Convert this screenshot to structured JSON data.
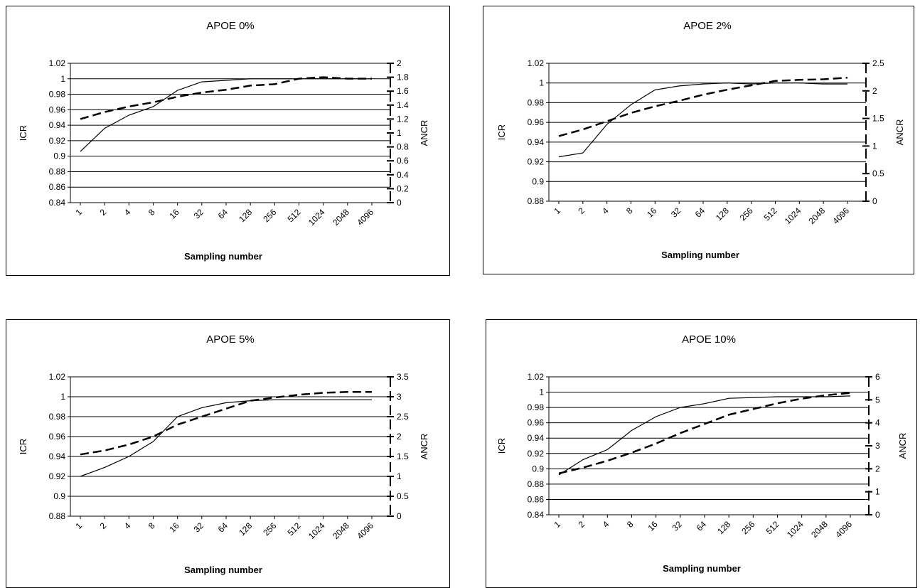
{
  "chart_data": [
    {
      "type": "line",
      "title": "APOE 0%",
      "xlabel": "Sampling number",
      "ylabel": "ICR",
      "y2label": "ANCR",
      "categories": [
        "1",
        "2",
        "4",
        "8",
        "16",
        "32",
        "64",
        "128",
        "256",
        "512",
        "1024",
        "2048",
        "4096"
      ],
      "ylim": [
        0.84,
        1.02
      ],
      "yticks": [
        "0.84",
        "0.86",
        "0.88",
        "0.9",
        "0.92",
        "0.94",
        "0.96",
        "0.98",
        "1",
        "1.02"
      ],
      "y2lim": [
        0,
        2
      ],
      "y2ticks": [
        "0",
        "0.2",
        "0.4",
        "0.6",
        "0.8",
        "1",
        "1.2",
        "1.4",
        "1.6",
        "1.8",
        "2"
      ],
      "grid": true,
      "series": [
        {
          "axis": "left",
          "style": "solid",
          "x": [
            0,
            1,
            2,
            3,
            4,
            5,
            6,
            7,
            8,
            9,
            10,
            11,
            12
          ],
          "values": [
            0.906,
            0.936,
            0.953,
            0.964,
            0.985,
            0.996,
            0.998,
            1.0,
            1.0,
            1.0,
            1.0,
            1.0,
            1.0
          ]
        },
        {
          "axis": "right",
          "style": "dashed",
          "x": [
            0,
            1,
            2,
            3,
            4,
            5,
            6,
            7,
            8,
            9,
            10,
            11,
            12
          ],
          "values": [
            1.2,
            1.3,
            1.38,
            1.44,
            1.52,
            1.58,
            1.62,
            1.68,
            1.7,
            1.78,
            1.8,
            1.78,
            1.78
          ]
        }
      ]
    },
    {
      "type": "line",
      "title": "APOE 2%",
      "xlabel": "Sampling number",
      "ylabel": "ICR",
      "y2label": "ANCR",
      "categories": [
        "1",
        "2",
        "4",
        "8",
        "16",
        "32",
        "64",
        "128",
        "256",
        "512",
        "1024",
        "2048",
        "4096"
      ],
      "ylim": [
        0.88,
        1.02
      ],
      "yticks": [
        "0.88",
        "0.9",
        "0.92",
        "0.94",
        "0.96",
        "0.98",
        "1",
        "1.02"
      ],
      "y2lim": [
        0,
        2.5
      ],
      "y2ticks": [
        "0",
        "0.5",
        "1",
        "1.5",
        "2",
        "2.5"
      ],
      "grid": true,
      "series": [
        {
          "axis": "left",
          "style": "solid",
          "x": [
            0,
            1,
            2,
            3,
            4,
            5,
            6,
            7,
            8,
            9,
            10,
            11,
            12
          ],
          "values": [
            0.925,
            0.929,
            0.958,
            0.978,
            0.993,
            0.997,
            0.999,
            1.0,
            0.999,
            1.0,
            1.0,
            0.999,
            0.999
          ]
        },
        {
          "axis": "right",
          "style": "dashed",
          "x": [
            0,
            1,
            2,
            3,
            4,
            5,
            6,
            7,
            8,
            9,
            10,
            11,
            12
          ],
          "values": [
            1.18,
            1.3,
            1.45,
            1.6,
            1.72,
            1.82,
            1.93,
            2.02,
            2.1,
            2.18,
            2.2,
            2.21,
            2.24
          ]
        }
      ]
    },
    {
      "type": "line",
      "title": "APOE 5%",
      "xlabel": "Sampling number",
      "ylabel": "ICR",
      "y2label": "ANCR",
      "categories": [
        "1",
        "2",
        "4",
        "8",
        "16",
        "32",
        "64",
        "128",
        "256",
        "512",
        "1024",
        "2048",
        "4096"
      ],
      "ylim": [
        0.88,
        1.02
      ],
      "yticks": [
        "0.88",
        "0.9",
        "0.92",
        "0.94",
        "0.96",
        "0.98",
        "1",
        "1.02"
      ],
      "y2lim": [
        0,
        3.5
      ],
      "y2ticks": [
        "0",
        "0.5",
        "1",
        "1.5",
        "2",
        "2.5",
        "3",
        "3.5"
      ],
      "grid": true,
      "series": [
        {
          "axis": "left",
          "style": "solid",
          "x": [
            0,
            1,
            2,
            3,
            4,
            5,
            6,
            7,
            8,
            9,
            10,
            11,
            12
          ],
          "values": [
            0.92,
            0.929,
            0.94,
            0.955,
            0.98,
            0.989,
            0.994,
            0.996,
            0.997,
            0.997,
            0.997,
            0.997,
            0.997
          ]
        },
        {
          "axis": "right",
          "style": "dashed",
          "x": [
            0,
            1,
            2,
            3,
            4,
            5,
            6,
            7,
            8,
            9,
            10,
            11,
            12
          ],
          "values": [
            1.55,
            1.65,
            1.8,
            2.0,
            2.3,
            2.5,
            2.7,
            2.9,
            2.98,
            3.05,
            3.1,
            3.12,
            3.12
          ]
        }
      ]
    },
    {
      "type": "line",
      "title": "APOE 10%",
      "xlabel": "Sampling number",
      "ylabel": "ICR",
      "y2label": "ANCR",
      "categories": [
        "1",
        "2",
        "4",
        "8",
        "16",
        "32",
        "64",
        "128",
        "256",
        "512",
        "1024",
        "2048",
        "4096"
      ],
      "ylim": [
        0.84,
        1.02
      ],
      "yticks": [
        "0.84",
        "0.86",
        "0.88",
        "0.9",
        "0.92",
        "0.94",
        "0.96",
        "0.98",
        "1",
        "1.02"
      ],
      "y2lim": [
        0,
        6
      ],
      "y2ticks": [
        "0",
        "1",
        "2",
        "3",
        "4",
        "5",
        "6"
      ],
      "grid": true,
      "series": [
        {
          "axis": "left",
          "style": "solid",
          "x": [
            0,
            1,
            2,
            3,
            4,
            5,
            6,
            7,
            8,
            9,
            10,
            11,
            12
          ],
          "values": [
            0.892,
            0.912,
            0.925,
            0.95,
            0.968,
            0.98,
            0.985,
            0.992,
            0.993,
            0.994,
            0.994,
            0.994,
            0.995
          ]
        },
        {
          "axis": "right",
          "style": "dashed",
          "x": [
            0,
            1,
            2,
            3,
            4,
            5,
            6,
            7,
            8,
            9,
            10,
            11,
            12
          ],
          "values": [
            1.8,
            2.05,
            2.35,
            2.7,
            3.1,
            3.55,
            3.95,
            4.35,
            4.6,
            4.85,
            5.05,
            5.2,
            5.3
          ]
        }
      ]
    }
  ]
}
